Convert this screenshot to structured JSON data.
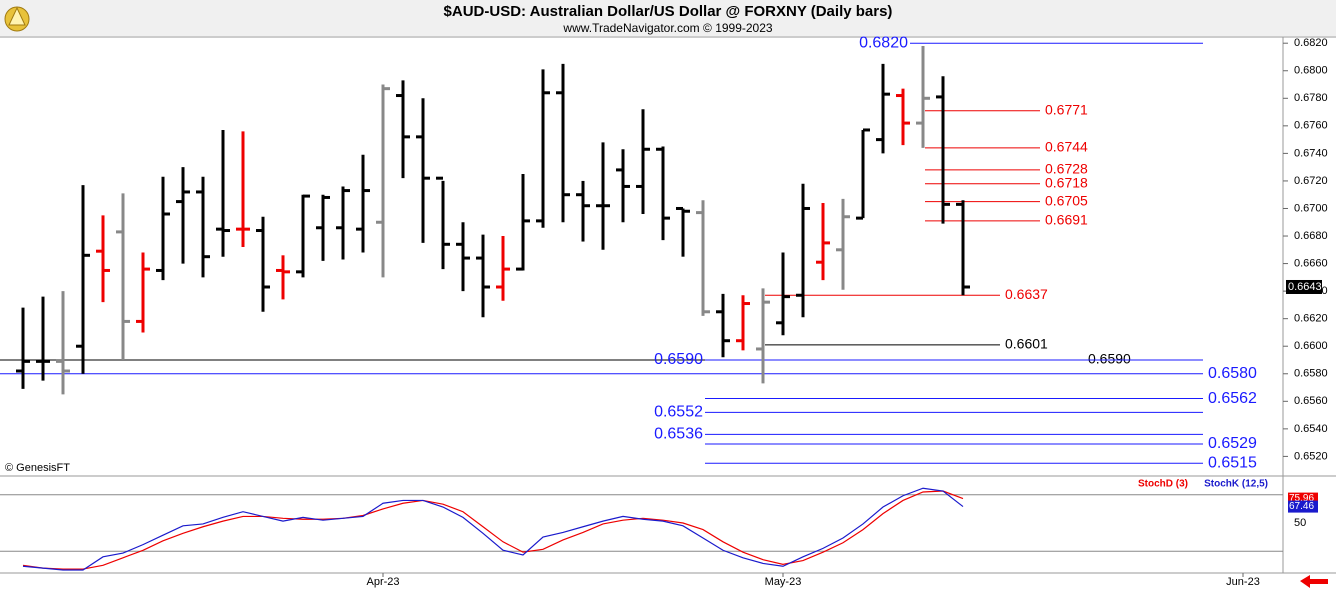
{
  "chart_data": [
    {
      "type": "ohlc",
      "title": "$AUD-USD:  Australian Dollar/US Dollar @ FORXNY  (Daily bars)",
      "subtitle": "www.TradeNavigator.com © 1999-2023",
      "copyright": "© GenesisFT",
      "categories": [
        null,
        null,
        null,
        null,
        null,
        null,
        null,
        null,
        null,
        null,
        null,
        null,
        null,
        null,
        null,
        null,
        null,
        null,
        null,
        null,
        null,
        null,
        null,
        null,
        null,
        null,
        null,
        null,
        null,
        null,
        null,
        null,
        null,
        null,
        null,
        null,
        null,
        null,
        null,
        null,
        null,
        null,
        null,
        null,
        null,
        null,
        null,
        null
      ],
      "open": [
        0.6582,
        0.6589,
        0.6589,
        0.66,
        0.6669,
        0.6683,
        0.6618,
        0.6655,
        0.6705,
        0.6712,
        0.6685,
        0.6685,
        0.6684,
        0.6655,
        0.6654,
        0.6686,
        0.6686,
        0.6685,
        0.669,
        0.6782,
        0.6752,
        0.6722,
        0.6674,
        0.6664,
        0.6643,
        0.6656,
        0.6691,
        0.6784,
        0.671,
        0.6702,
        0.6728,
        0.6716,
        0.6743,
        0.67,
        0.6697,
        0.6625,
        0.6604,
        0.6598,
        0.6617,
        0.6637,
        0.6661,
        0.667,
        0.6693,
        0.675,
        0.6782,
        0.6762,
        0.6781,
        0.6703
      ],
      "high": [
        0.6628,
        0.6636,
        0.664,
        0.6717,
        0.6695,
        0.6711,
        0.6668,
        0.6723,
        0.673,
        0.6723,
        0.6757,
        0.6756,
        0.6694,
        0.6666,
        0.671,
        0.671,
        0.6716,
        0.6739,
        0.679,
        0.6793,
        0.678,
        0.672,
        0.669,
        0.6681,
        0.668,
        0.6725,
        0.6801,
        0.6805,
        0.672,
        0.6748,
        0.6743,
        0.6772,
        0.6745,
        0.67,
        0.6706,
        0.6638,
        0.6637,
        0.6642,
        0.6668,
        0.6718,
        0.6704,
        0.6707,
        0.6757,
        0.6805,
        0.6787,
        0.6818,
        0.6796,
        0.6706
      ],
      "low": [
        0.6569,
        0.6575,
        0.6565,
        0.658,
        0.6632,
        0.659,
        0.661,
        0.6648,
        0.666,
        0.665,
        0.6665,
        0.6672,
        0.6625,
        0.6634,
        0.665,
        0.6662,
        0.6663,
        0.6668,
        0.665,
        0.6722,
        0.6675,
        0.6656,
        0.664,
        0.6621,
        0.6633,
        0.6655,
        0.6686,
        0.669,
        0.6676,
        0.667,
        0.669,
        0.6696,
        0.6677,
        0.6665,
        0.6622,
        0.6592,
        0.6597,
        0.6573,
        0.6608,
        0.6621,
        0.6648,
        0.6641,
        0.6693,
        0.674,
        0.6746,
        0.6744,
        0.6689,
        0.6637
      ],
      "close": [
        0.6589,
        0.6589,
        0.6582,
        0.6666,
        0.6655,
        0.6618,
        0.6656,
        0.6696,
        0.6712,
        0.6665,
        0.6684,
        0.6685,
        0.6643,
        0.6654,
        0.6709,
        0.6708,
        0.6713,
        0.6713,
        0.6787,
        0.6752,
        0.6722,
        0.6674,
        0.6664,
        0.6643,
        0.6656,
        0.6691,
        0.6784,
        0.671,
        0.6702,
        0.6702,
        0.6716,
        0.6743,
        0.6693,
        0.6698,
        0.6625,
        0.6604,
        0.6631,
        0.6632,
        0.6636,
        0.67,
        0.6675,
        0.6694,
        0.6757,
        0.6783,
        0.6762,
        0.678,
        0.6703,
        0.6643
      ],
      "bar_colors": [
        "#000",
        "#000",
        "#888",
        "#000",
        "#e00",
        "#888",
        "#e00",
        "#000",
        "#000",
        "#000",
        "#000",
        "#e00",
        "#000",
        "#e00",
        "#000",
        "#000",
        "#000",
        "#000",
        "#888",
        "#000",
        "#000",
        "#000",
        "#000",
        "#000",
        "#e00",
        "#000",
        "#000",
        "#000",
        "#000",
        "#000",
        "#000",
        "#000",
        "#000",
        "#000",
        "#888",
        "#000",
        "#e00",
        "#888",
        "#000",
        "#000",
        "#e00",
        "#888",
        "#000",
        "#000",
        "#e00",
        "#888",
        "#000",
        "#000"
      ],
      "xlim": [
        -1,
        63
      ],
      "xticks": [
        {
          "value": 18,
          "label": "Apr-23"
        },
        {
          "value": 38,
          "label": "May-23"
        },
        {
          "value": 61,
          "label": "Jun-23"
        }
      ],
      "ylim": [
        0.65065,
        0.68245
      ],
      "yticks": [
        {
          "value": 0.652,
          "label": "0.6520"
        },
        {
          "value": 0.654,
          "label": "0.6540"
        },
        {
          "value": 0.656,
          "label": "0.6560"
        },
        {
          "value": 0.658,
          "label": "0.6580"
        },
        {
          "value": 0.66,
          "label": "0.6600"
        },
        {
          "value": 0.662,
          "label": "0.6620"
        },
        {
          "value": 0.664,
          "label": "0.6640"
        },
        {
          "value": 0.666,
          "label": "0.6660"
        },
        {
          "value": 0.668,
          "label": "0.6680"
        },
        {
          "value": 0.67,
          "label": "0.6700"
        },
        {
          "value": 0.672,
          "label": "0.6720"
        },
        {
          "value": 0.674,
          "label": "0.6740"
        },
        {
          "value": 0.676,
          "label": "0.6760"
        },
        {
          "value": 0.678,
          "label": "0.6780"
        },
        {
          "value": 0.68,
          "label": "0.6800"
        },
        {
          "value": 0.682,
          "label": "0.6820"
        }
      ],
      "last_price": {
        "value": 0.6643,
        "label": "0.6643"
      },
      "levels": [
        {
          "value": 0.682,
          "label": "0.6820",
          "color": "#1a1aff",
          "side": "left"
        },
        {
          "value": 0.6771,
          "label": "0.6771",
          "color": "#e00",
          "side": "right"
        },
        {
          "value": 0.6744,
          "label": "0.6744",
          "color": "#e00",
          "side": "right"
        },
        {
          "value": 0.6728,
          "label": "0.6728",
          "color": "#e00",
          "side": "right"
        },
        {
          "value": 0.6718,
          "label": "0.6718",
          "color": "#e00",
          "side": "right"
        },
        {
          "value": 0.6705,
          "label": "0.6705",
          "color": "#e00",
          "side": "right"
        },
        {
          "value": 0.6691,
          "label": "0.6691",
          "color": "#e00",
          "side": "right"
        },
        {
          "value": 0.6637,
          "label": "0.6637",
          "color": "#e00",
          "side": "right"
        },
        {
          "value": 0.6601,
          "label": "0.6601",
          "color": "#000",
          "side": "right"
        },
        {
          "value": 0.659,
          "label": "0.6590",
          "color": "#000",
          "side": "right"
        },
        {
          "value": 0.659,
          "label": "0.6590",
          "color": "#1a1aff",
          "side": "left"
        },
        {
          "value": 0.658,
          "label": "0.6580",
          "color": "#1a1aff",
          "side": "right"
        },
        {
          "value": 0.6562,
          "label": "0.6562",
          "color": "#1a1aff",
          "side": "right"
        },
        {
          "value": 0.6552,
          "label": "0.6552",
          "color": "#1a1aff",
          "side": "left"
        },
        {
          "value": 0.6536,
          "label": "0.6536",
          "color": "#1a1aff",
          "side": "left"
        },
        {
          "value": 0.6529,
          "label": "0.6529",
          "color": "#1a1aff",
          "side": "right"
        },
        {
          "value": 0.6515,
          "label": "0.6515",
          "color": "#1a1aff",
          "side": "right"
        }
      ]
    },
    {
      "type": "line",
      "ylim": [
        0,
        100
      ],
      "yticks": [
        50
      ],
      "reference_lines": [
        20,
        80
      ],
      "series": [
        {
          "name": "StochD (3)",
          "color": "#e00",
          "values": [
            5,
            2,
            1,
            1,
            5,
            13,
            21,
            31,
            39,
            46,
            52,
            57,
            57,
            55,
            54,
            54,
            55,
            58,
            65,
            71,
            74,
            70,
            62,
            46,
            30,
            19,
            22,
            32,
            40,
            49,
            53,
            55,
            53,
            50,
            43,
            30,
            19,
            11,
            6,
            10,
            19,
            29,
            43,
            60,
            74,
            83,
            84,
            75.96
          ]
        },
        {
          "name": "StochK (12,5)",
          "color": "#1a1acc",
          "values": [
            4,
            2,
            0,
            0,
            14,
            18,
            27,
            37,
            47,
            49,
            56,
            62,
            57,
            52,
            56,
            53,
            55,
            57,
            71,
            74,
            74,
            67,
            56,
            39,
            21,
            16,
            35,
            40,
            46,
            52,
            57,
            54,
            52,
            47,
            34,
            21,
            13,
            7,
            4,
            14,
            23,
            34,
            49,
            67,
            79,
            87,
            84,
            67.46
          ]
        }
      ]
    }
  ]
}
